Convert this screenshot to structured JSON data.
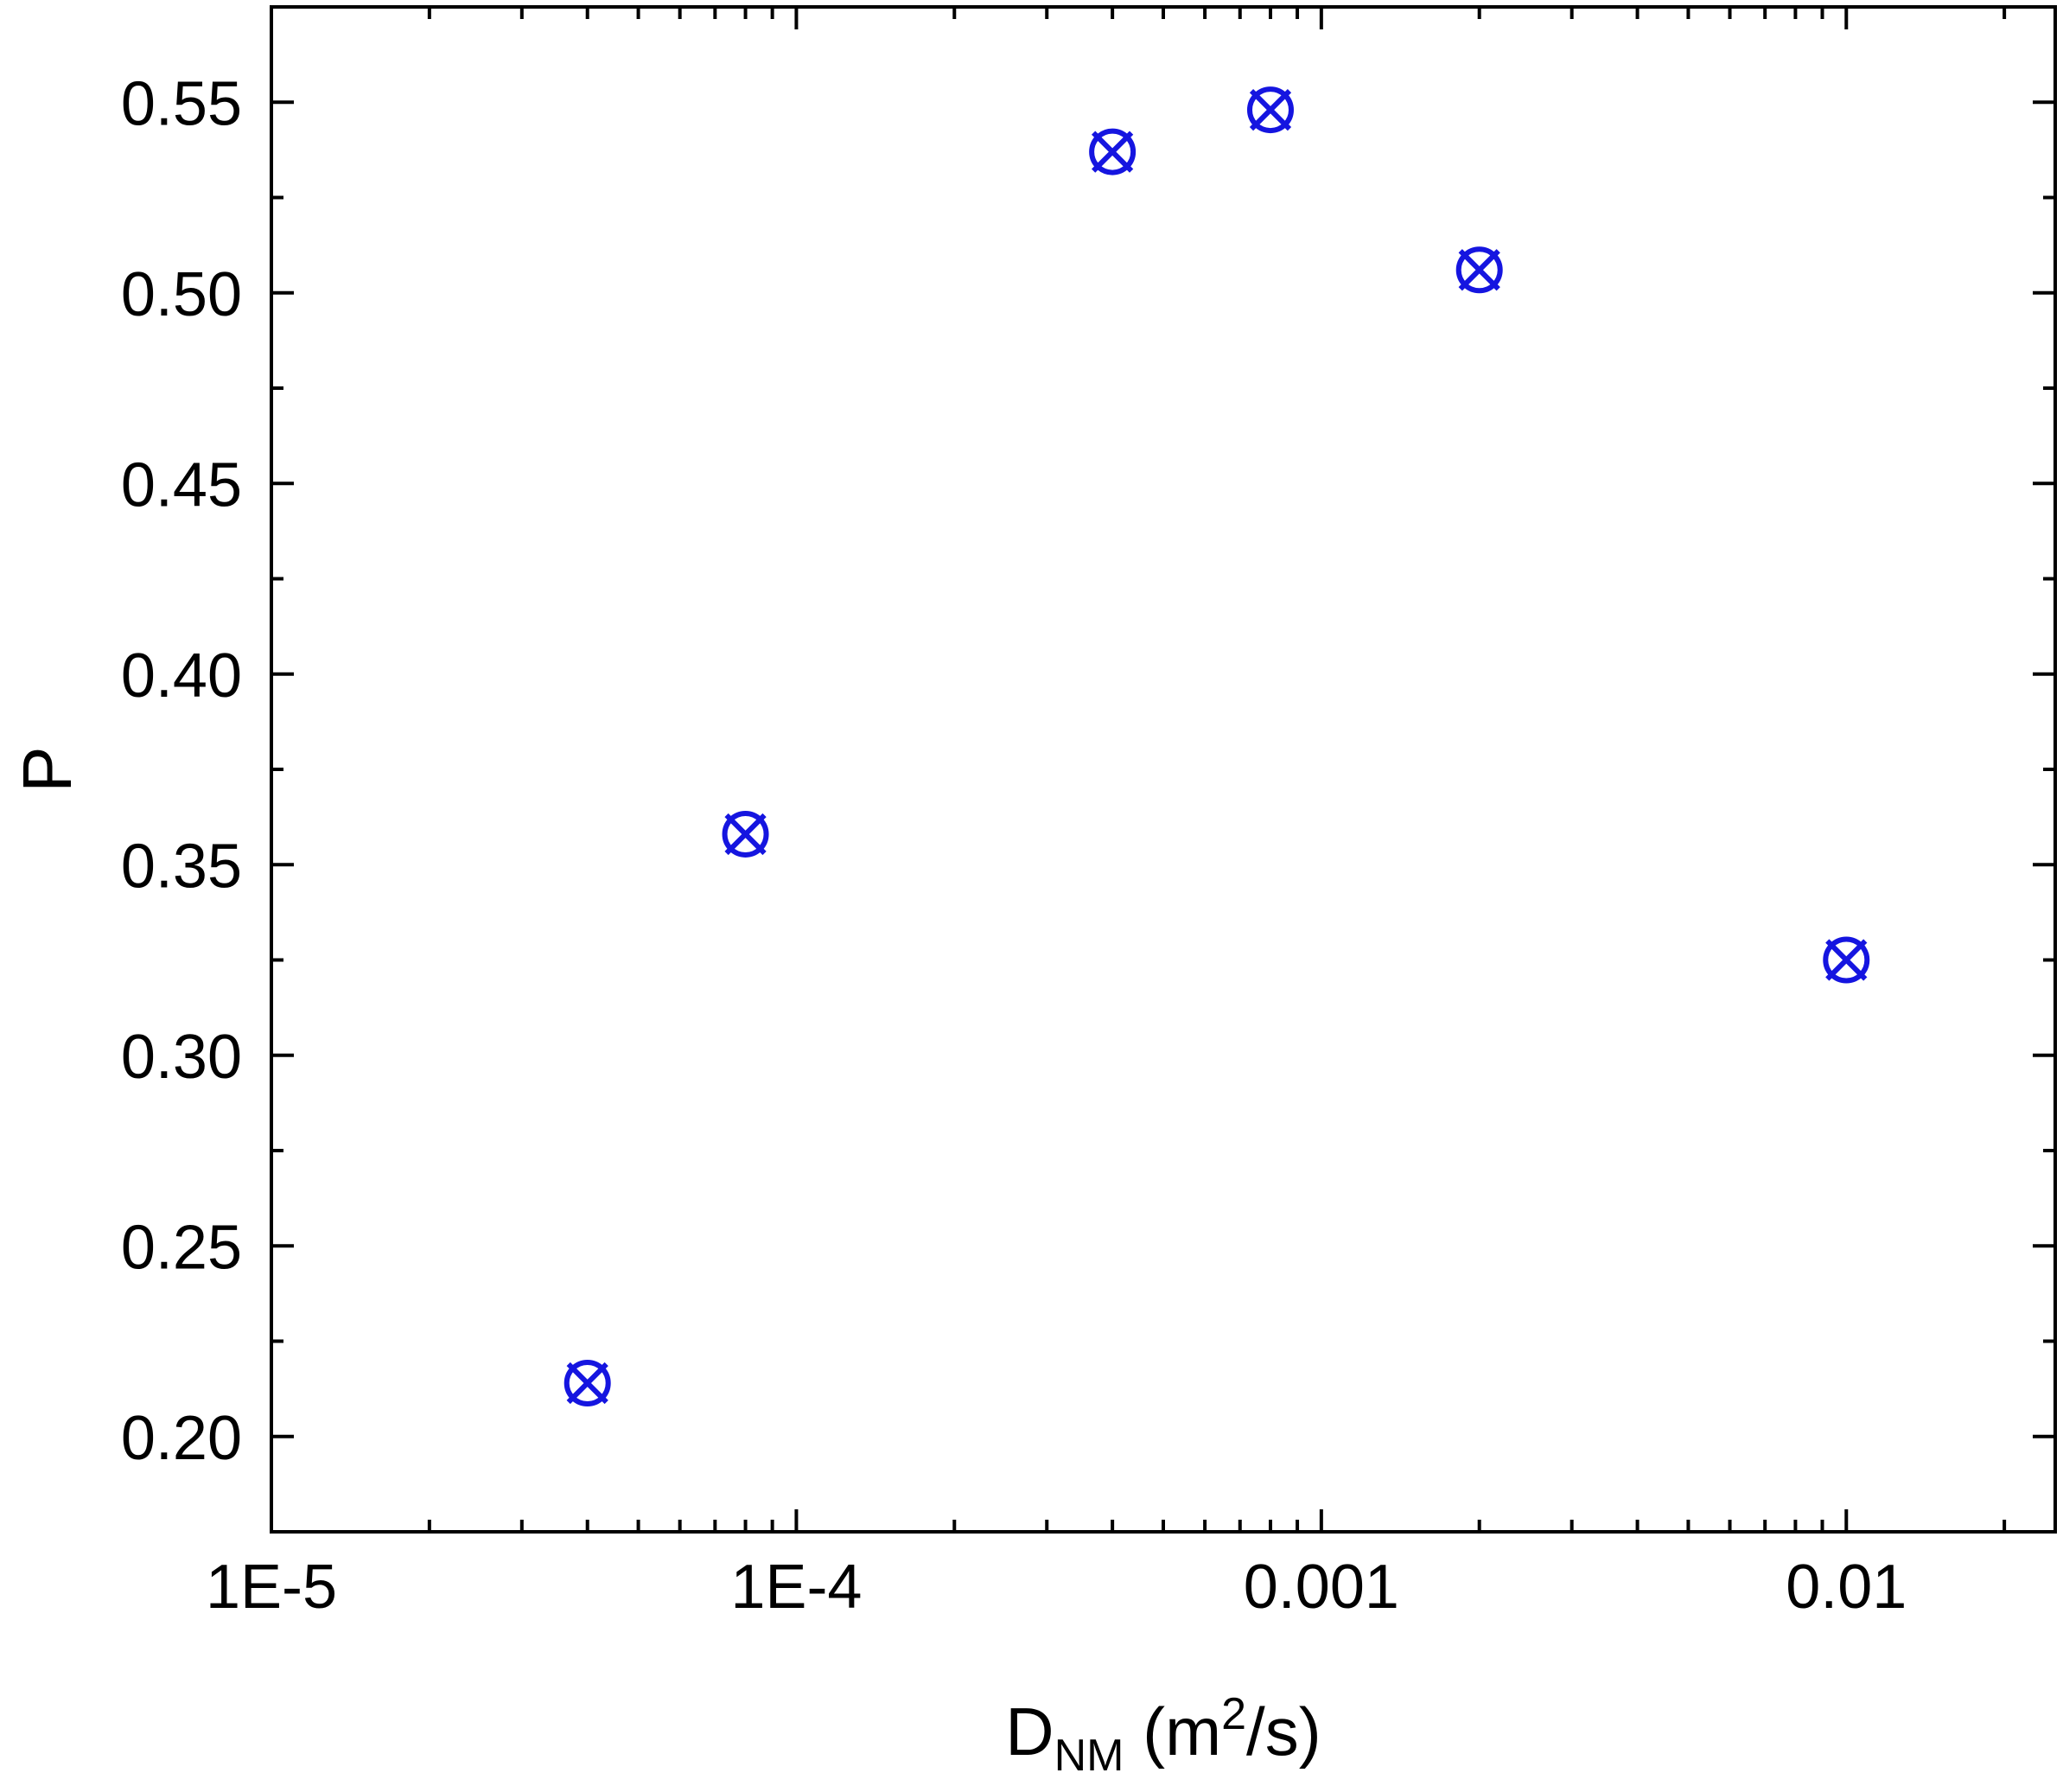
{
  "chart_data": {
    "type": "scatter",
    "xlabel": {
      "main": "D",
      "sub": "NM",
      "unit_pre": " (m",
      "sup": "2",
      "unit_post": "/s)"
    },
    "ylabel": "P",
    "x_scale": "log",
    "xlim": [
      1e-05,
      0.025
    ],
    "ylim": [
      0.175,
      0.575
    ],
    "x_ticks": [
      {
        "value": 1e-05,
        "label": "1E-5"
      },
      {
        "value": 0.0001,
        "label": "1E-4"
      },
      {
        "value": 0.001,
        "label": "0.001"
      },
      {
        "value": 0.01,
        "label": "0.01"
      }
    ],
    "y_ticks": [
      {
        "value": 0.2,
        "label": "0.20"
      },
      {
        "value": 0.25,
        "label": "0.25"
      },
      {
        "value": 0.3,
        "label": "0.30"
      },
      {
        "value": 0.35,
        "label": "0.35"
      },
      {
        "value": 0.4,
        "label": "0.40"
      },
      {
        "value": 0.45,
        "label": "0.45"
      },
      {
        "value": 0.5,
        "label": "0.50"
      },
      {
        "value": 0.55,
        "label": "0.55"
      }
    ],
    "grid": false,
    "marker": "circle-x",
    "marker_color": "#1515e0",
    "series": [
      {
        "x": [
          4e-05,
          8e-05,
          0.0004,
          0.0008,
          0.002,
          0.01
        ],
        "y": [
          0.214,
          0.358,
          0.537,
          0.548,
          0.506,
          0.325
        ]
      }
    ]
  }
}
